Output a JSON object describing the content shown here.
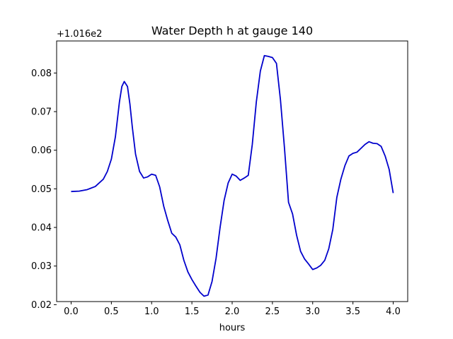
{
  "chart_data": {
    "type": "line",
    "title": "Water Depth h at gauge 140",
    "xlabel": "hours",
    "ylabel": "",
    "offset_label": "+1.016e2",
    "xlim": [
      -0.18,
      4.18
    ],
    "ylim": [
      0.0208,
      0.0883
    ],
    "xticks": [
      0.0,
      0.5,
      1.0,
      1.5,
      2.0,
      2.5,
      3.0,
      3.5,
      4.0
    ],
    "xtick_labels": [
      "0.0",
      "0.5",
      "1.0",
      "1.5",
      "2.0",
      "2.5",
      "3.0",
      "3.5",
      "4.0"
    ],
    "yticks": [
      0.02,
      0.03,
      0.04,
      0.05,
      0.06,
      0.07,
      0.08
    ],
    "ytick_labels": [
      "0.02",
      "0.03",
      "0.04",
      "0.05",
      "0.06",
      "0.07",
      "0.08"
    ],
    "grid": false,
    "line_color": "#0000cc",
    "series": [
      {
        "x": [
          0.0,
          0.1,
          0.2,
          0.3,
          0.4,
          0.45,
          0.5,
          0.55,
          0.6,
          0.63,
          0.66,
          0.7,
          0.73,
          0.76,
          0.8,
          0.85,
          0.9,
          0.95,
          1.0,
          1.05,
          1.1,
          1.15,
          1.2,
          1.25,
          1.3,
          1.35,
          1.4,
          1.45,
          1.5,
          1.55,
          1.6,
          1.65,
          1.7,
          1.75,
          1.8,
          1.85,
          1.9,
          1.95,
          2.0,
          2.05,
          2.1,
          2.15,
          2.2,
          2.25,
          2.3,
          2.35,
          2.4,
          2.45,
          2.5,
          2.55,
          2.6,
          2.65,
          2.7,
          2.75,
          2.8,
          2.85,
          2.9,
          2.95,
          3.0,
          3.05,
          3.1,
          3.15,
          3.2,
          3.25,
          3.3,
          3.35,
          3.4,
          3.45,
          3.5,
          3.55,
          3.6,
          3.65,
          3.7,
          3.75,
          3.8,
          3.85,
          3.9,
          3.95,
          4.0
        ],
        "values": [
          0.0493,
          0.0494,
          0.0498,
          0.0506,
          0.0525,
          0.0545,
          0.0577,
          0.0635,
          0.0725,
          0.0765,
          0.0778,
          0.0765,
          0.072,
          0.066,
          0.059,
          0.0545,
          0.0528,
          0.0531,
          0.0538,
          0.0535,
          0.0505,
          0.0455,
          0.0418,
          0.0385,
          0.0375,
          0.0355,
          0.0315,
          0.0285,
          0.0265,
          0.0248,
          0.0232,
          0.0222,
          0.0225,
          0.026,
          0.032,
          0.04,
          0.047,
          0.0515,
          0.0538,
          0.0533,
          0.0522,
          0.0528,
          0.0535,
          0.0615,
          0.0725,
          0.0805,
          0.0845,
          0.0843,
          0.084,
          0.0825,
          0.073,
          0.0605,
          0.0465,
          0.0435,
          0.038,
          0.0338,
          0.0318,
          0.0305,
          0.0291,
          0.0295,
          0.0302,
          0.0315,
          0.0345,
          0.0395,
          0.0478,
          0.0525,
          0.056,
          0.0585,
          0.0592,
          0.0595,
          0.0605,
          0.0615,
          0.0622,
          0.0618,
          0.0617,
          0.061,
          0.0585,
          0.055,
          0.0489
        ]
      }
    ]
  }
}
